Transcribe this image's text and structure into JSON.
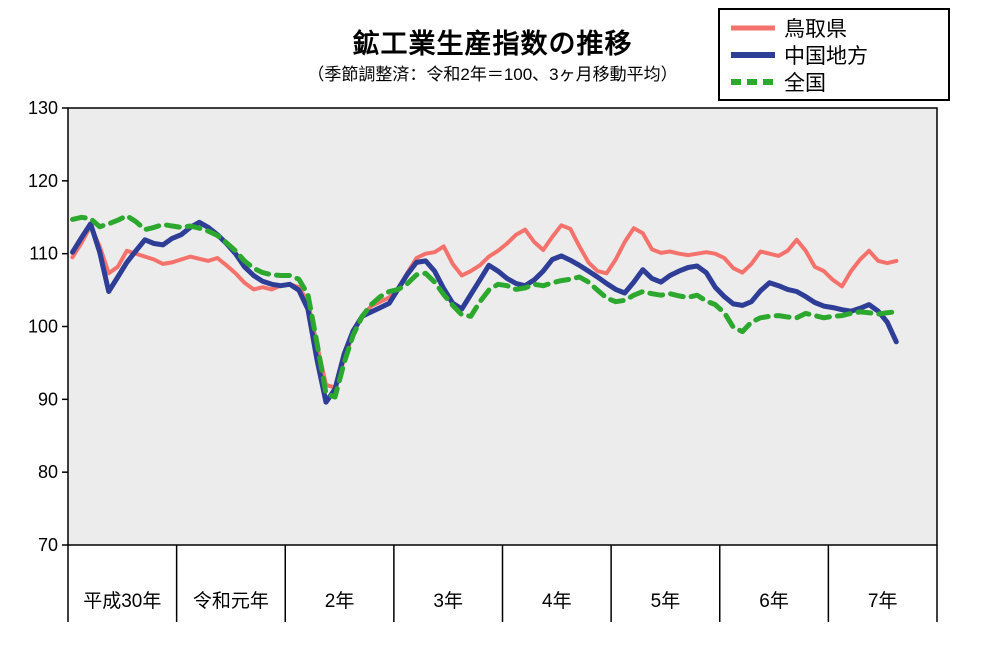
{
  "title": "鉱工業生産指数の推移",
  "subtitle": "（季節調整済：令和2年＝100、3ヶ月移動平均）",
  "legend": {
    "items": [
      "鳥取県",
      "中国地方",
      "全国"
    ]
  },
  "chart_data": {
    "type": "line",
    "title": "鉱工業生産指数の推移",
    "subtitle": "（季節調整済：令和2年＝100、3ヶ月移動平均）",
    "ylim": [
      70,
      130
    ],
    "y_ticks": [
      130,
      120,
      110,
      100,
      90,
      80,
      70
    ],
    "x_categories": [
      "平成30年",
      "令和元年",
      "2年",
      "3年",
      "4年",
      "5年",
      "6年",
      "7年"
    ],
    "months_per_category": 12,
    "grid": false,
    "legend_position": "top-right",
    "plot_bg": "#ececec",
    "axis_color": "#000000",
    "series": [
      {
        "name": "鳥取県",
        "color": "#f4726b",
        "width": 4,
        "dash": null,
        "values": [
          109.5,
          111.5,
          113.8,
          111.0,
          107.3,
          108.2,
          110.4,
          110.0,
          109.6,
          109.2,
          108.6,
          108.8,
          109.2,
          109.6,
          109.3,
          109.0,
          109.4,
          108.4,
          107.3,
          106.0,
          105.1,
          105.4,
          105.1,
          105.6,
          105.8,
          105.4,
          103.4,
          97.5,
          92.0,
          91.6,
          95.5,
          99.0,
          101.5,
          102.8,
          103.4,
          104.0,
          105.3,
          107.4,
          109.4,
          110.0,
          110.2,
          111.0,
          108.6,
          107.0,
          107.6,
          108.4,
          109.6,
          110.4,
          111.4,
          112.6,
          113.3,
          111.6,
          110.5,
          112.3,
          113.9,
          113.4,
          111.0,
          108.8,
          107.6,
          107.3,
          109.2,
          111.6,
          113.5,
          112.8,
          110.6,
          110.1,
          110.3,
          110.0,
          109.8,
          110.0,
          110.2,
          110.0,
          109.4,
          108.0,
          107.4,
          108.6,
          110.3,
          110.0,
          109.7,
          110.4,
          111.9,
          110.4,
          108.2,
          107.6,
          106.4,
          105.5,
          107.6,
          109.2,
          110.4,
          109.0,
          108.7,
          109.0
        ]
      },
      {
        "name": "中国地方",
        "color": "#2e3d96",
        "width": 5,
        "dash": null,
        "values": [
          110.2,
          112.2,
          114.1,
          110.2,
          104.8,
          106.8,
          108.8,
          110.4,
          111.9,
          111.4,
          111.2,
          112.1,
          112.6,
          113.6,
          114.3,
          113.6,
          112.6,
          111.4,
          110.0,
          108.2,
          107.0,
          106.2,
          105.8,
          105.6,
          105.8,
          105.0,
          102.4,
          95.5,
          89.6,
          91.4,
          96.2,
          99.4,
          101.4,
          102.0,
          102.6,
          103.2,
          105.2,
          107.2,
          108.8,
          109.0,
          107.6,
          105.2,
          103.2,
          102.4,
          104.4,
          106.4,
          108.4,
          107.6,
          106.6,
          105.9,
          105.6,
          106.4,
          107.6,
          109.2,
          109.7,
          109.1,
          108.4,
          107.6,
          106.8,
          105.9,
          105.1,
          104.6,
          106.1,
          107.8,
          106.6,
          106.1,
          107.0,
          107.6,
          108.1,
          108.3,
          107.4,
          105.4,
          104.1,
          103.1,
          102.9,
          103.4,
          104.9,
          106.0,
          105.6,
          105.1,
          104.8,
          104.1,
          103.3,
          102.8,
          102.6,
          102.3,
          102.1,
          102.5,
          103.0,
          102.1,
          100.6,
          97.9
        ]
      },
      {
        "name": "全国",
        "color": "#2ca82e",
        "width": 5,
        "dash": "13 8",
        "values": [
          114.7,
          115.0,
          114.8,
          113.7,
          114.1,
          114.6,
          115.2,
          114.4,
          113.3,
          113.6,
          114.0,
          113.8,
          113.6,
          113.8,
          113.5,
          113.1,
          112.5,
          111.5,
          110.4,
          109.0,
          108.0,
          107.4,
          107.1,
          107.0,
          107.0,
          106.5,
          104.4,
          97.8,
          90.8,
          90.3,
          95.0,
          98.8,
          101.4,
          103.0,
          104.1,
          104.8,
          105.1,
          105.9,
          107.1,
          107.3,
          106.1,
          104.4,
          102.9,
          101.6,
          101.4,
          103.4,
          105.0,
          105.8,
          105.6,
          105.1,
          105.3,
          105.8,
          105.6,
          106.0,
          106.3,
          106.5,
          106.8,
          106.1,
          105.0,
          103.9,
          103.4,
          103.6,
          104.3,
          104.8,
          104.5,
          104.3,
          104.5,
          104.2,
          104.0,
          104.3,
          103.5,
          103.0,
          101.9,
          99.9,
          99.3,
          100.6,
          101.2,
          101.4,
          101.5,
          101.3,
          101.2,
          101.8,
          101.5,
          101.2,
          101.4,
          101.5,
          101.8,
          102.0,
          101.9,
          101.7,
          101.9,
          102.0
        ]
      }
    ]
  }
}
